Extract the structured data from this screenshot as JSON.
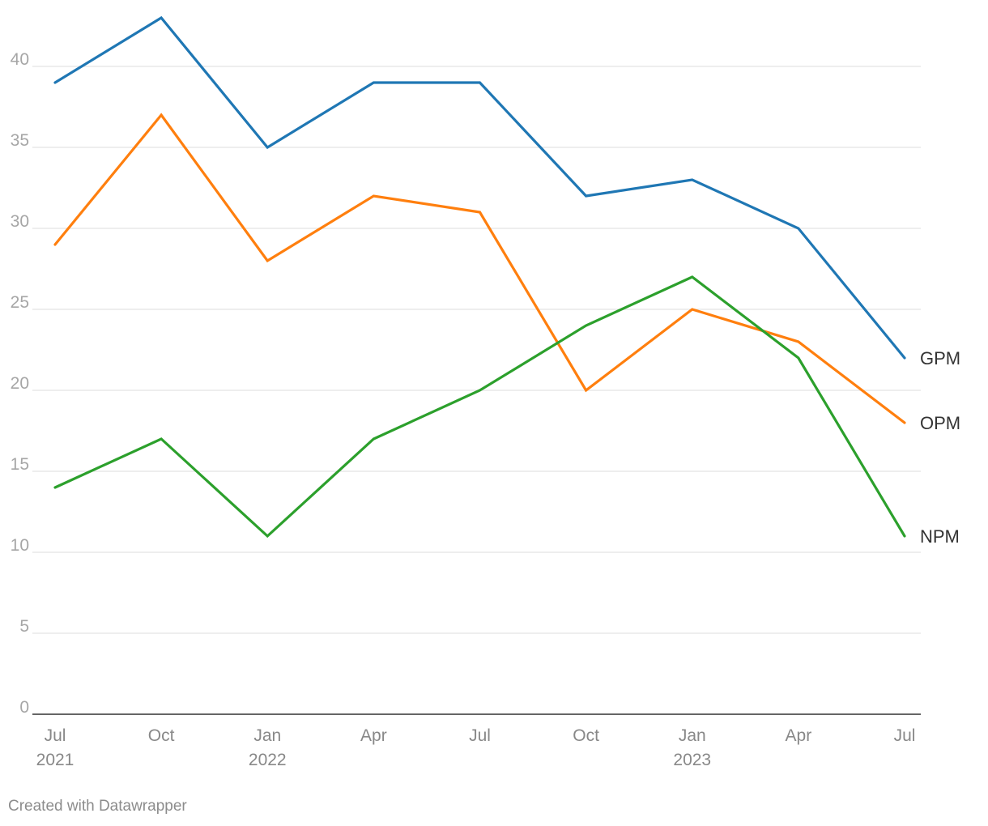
{
  "chart_data": {
    "type": "line",
    "x": [
      "2021-07",
      "2021-10",
      "2022-01",
      "2022-04",
      "2022-07",
      "2022-10",
      "2023-01",
      "2023-04",
      "2023-07"
    ],
    "x_tick_labels": [
      {
        "month": "Jul",
        "year": "2021"
      },
      {
        "month": "Oct",
        "year": ""
      },
      {
        "month": "Jan",
        "year": "2022"
      },
      {
        "month": "Apr",
        "year": ""
      },
      {
        "month": "Jul",
        "year": ""
      },
      {
        "month": "Oct",
        "year": ""
      },
      {
        "month": "Jan",
        "year": "2023"
      },
      {
        "month": "Apr",
        "year": ""
      },
      {
        "month": "Jul",
        "year": ""
      }
    ],
    "series": [
      {
        "name": "GPM",
        "color": "#1f77b4",
        "values": [
          39,
          43,
          35,
          39,
          39,
          32,
          33,
          30,
          22
        ]
      },
      {
        "name": "OPM",
        "color": "#ff7f0e",
        "values": [
          29,
          37,
          28,
          32,
          31,
          20,
          25,
          23,
          18
        ]
      },
      {
        "name": "NPM",
        "color": "#2ca02c",
        "values": [
          14,
          17,
          11,
          17,
          20,
          24,
          27,
          22,
          11
        ]
      }
    ],
    "y_ticks": [
      "0",
      "5",
      "10",
      "15",
      "20",
      "25",
      "30",
      "35",
      "40"
    ],
    "ylim": [
      0,
      44
    ],
    "grid": true,
    "legend": "direct labels at line ends (right)",
    "title": "",
    "xlabel": "",
    "ylabel": ""
  },
  "footer": {
    "credit": "Created with Datawrapper"
  }
}
